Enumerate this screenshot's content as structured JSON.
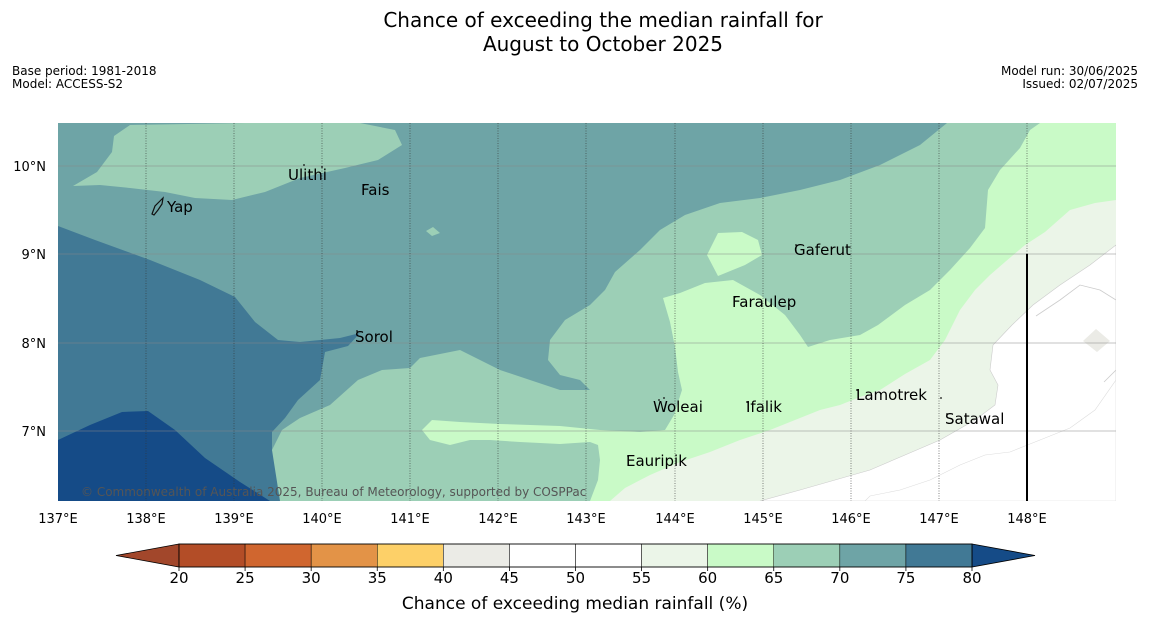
{
  "title": {
    "line1": "Chance of exceeding the median rainfall for",
    "line2": "August to October 2025"
  },
  "meta": {
    "base_period": "Base period: 1981-2018",
    "model": "Model: ACCESS-S2",
    "model_run": "Model run: 30/06/2025",
    "issued": "Issued: 02/07/2025"
  },
  "map": {
    "lat_labels": [
      "10°N",
      "9°N",
      "8°N",
      "7°N"
    ],
    "lon_labels": [
      "137°E",
      "138°E",
      "139°E",
      "140°E",
      "141°E",
      "142°E",
      "143°E",
      "144°E",
      "145°E",
      "146°E",
      "147°E",
      "148°E"
    ],
    "places": [
      {
        "name": "Ulithi"
      },
      {
        "name": "Fais"
      },
      {
        "name": "Yap"
      },
      {
        "name": "Gaferut"
      },
      {
        "name": "Faraulep"
      },
      {
        "name": "Sorol"
      },
      {
        "name": "Woleai"
      },
      {
        "name": "Ifalik"
      },
      {
        "name": "Lamotrek"
      },
      {
        "name": "Satawal"
      },
      {
        "name": "Eauripik"
      }
    ],
    "copyright": "© Commonwealth of Australia 2025, Bureau of Meteorology, supported by COSPPac"
  },
  "colorbar": {
    "ticks": [
      "20",
      "25",
      "30",
      "35",
      "40",
      "45",
      "50",
      "55",
      "60",
      "65",
      "70",
      "75",
      "80"
    ],
    "colors": [
      "#b34d27",
      "#d0662f",
      "#e39347",
      "#fdd068",
      "#ebebe6",
      "#ffffff",
      "#ffffff",
      "#ebf5e8",
      "#c9fac7",
      "#9ccfb6",
      "#6ea4a6",
      "#417995"
    ],
    "under_color": "#a2472b",
    "over_color": "#154b87",
    "label": "Chance of exceeding median rainfall (%)"
  },
  "legend_colors": {
    "band_75_80": "#417995",
    "band_70_75": "#6ea4a6",
    "band_65_70": "#9ccfb6",
    "band_60_65": "#c9fac7",
    "band_55_60": "#ebf5e8",
    "above_80": "#154b87"
  }
}
